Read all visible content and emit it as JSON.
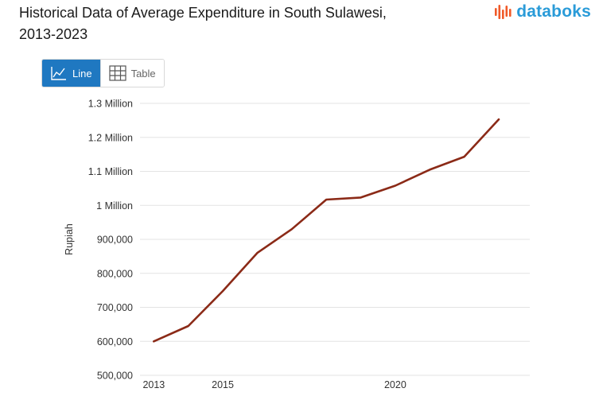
{
  "header": {
    "title_line1": "Historical Data of Average Expenditure in South Sulawesi,",
    "title_line2": "2013-2023",
    "brand": "databoks"
  },
  "view_toggle": {
    "line_label": "Line",
    "table_label": "Table",
    "selected": "Line"
  },
  "colors": {
    "line": "#8b2a17",
    "grid": "#e3e3e3",
    "accent": "#1f78c1",
    "brand_blue": "#2a9bd8",
    "brand_orange": "#f05a28"
  },
  "chart_data": {
    "type": "line",
    "title": "Historical Data of Average Expenditure in South Sulawesi, 2013-2023",
    "xlabel": "",
    "ylabel": "Rupiah",
    "x": [
      2013,
      2014,
      2015,
      2016,
      2017,
      2018,
      2019,
      2020,
      2021,
      2022,
      2023
    ],
    "series": [
      {
        "values": [
          600000,
          645000,
          748000,
          860000,
          930000,
          1017000,
          1023000,
          1058000,
          1105000,
          1143000,
          1253000
        ]
      }
    ],
    "ylim": [
      500000,
      1300000
    ],
    "yticks": [
      500000,
      600000,
      700000,
      800000,
      900000,
      1000000,
      1100000,
      1200000,
      1300000
    ],
    "ytick_labels": [
      "500,000",
      "600,000",
      "700,000",
      "800,000",
      "900,000",
      "1 Million",
      "1.1 Million",
      "1.2 Million",
      "1.3 Million"
    ],
    "xticks": [
      2013,
      2015,
      2020
    ],
    "xtick_labels": [
      "2013",
      "2015",
      "2020"
    ],
    "grid": true,
    "legend": "none"
  }
}
